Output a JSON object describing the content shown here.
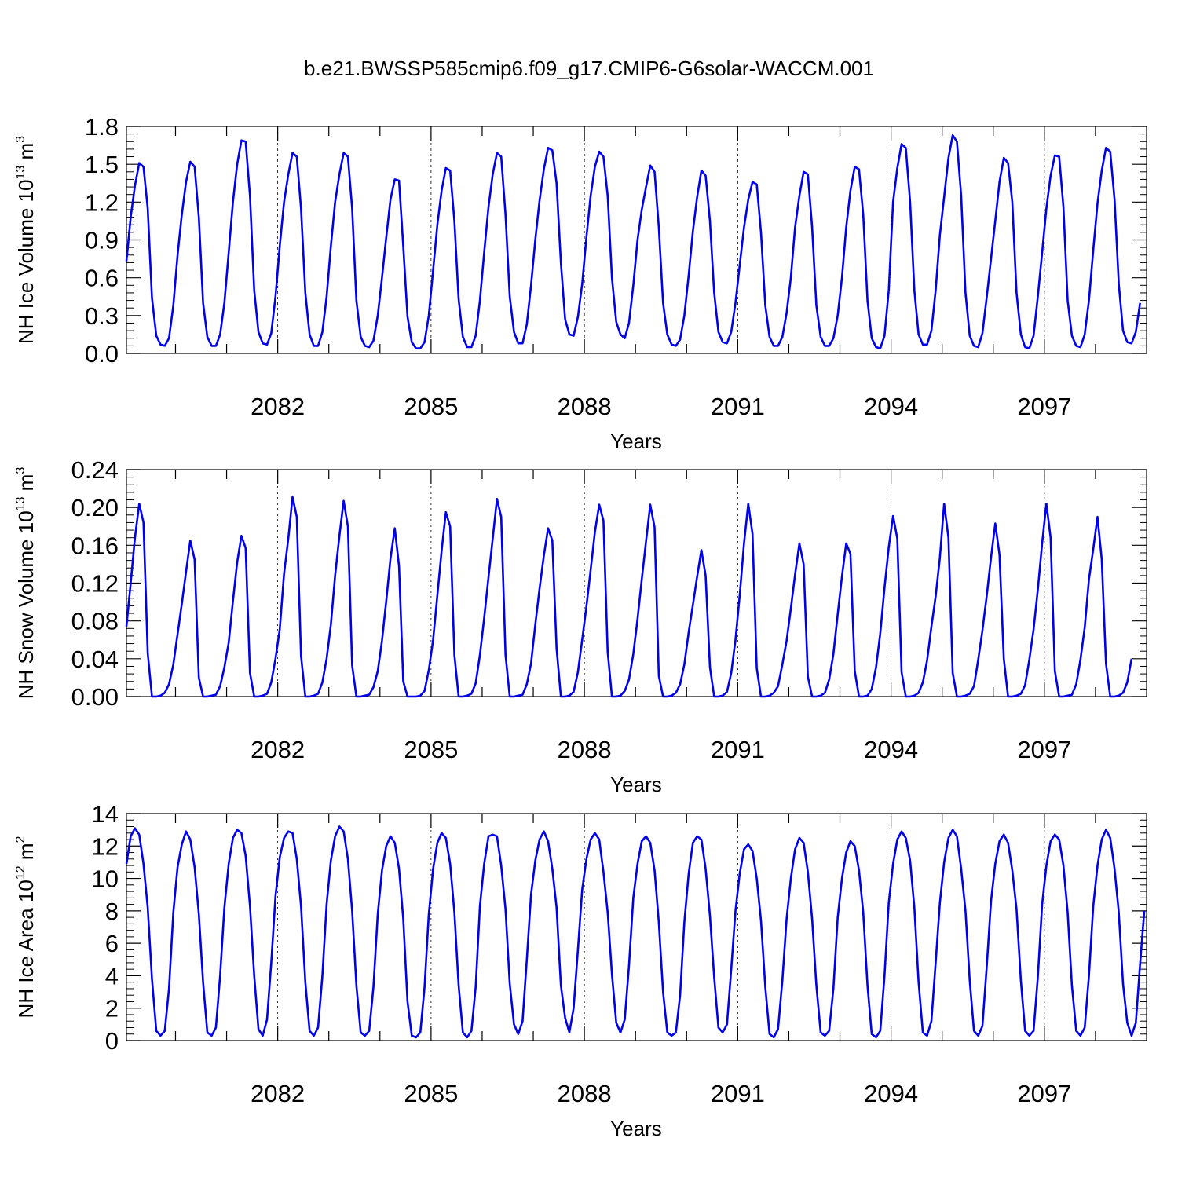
{
  "title": "b.e21.BWSSP585cmip6.f09_g17.CMIP6-G6solar-WACCM.001",
  "colors": {
    "line": "#0000ee",
    "axis": "#000000",
    "grid": "#000000"
  },
  "chart_data": [
    {
      "type": "line",
      "title": "b.e21.BWSSP585cmip6.f09_g17.CMIP6-G6solar-WACCM.001",
      "xlabel": "Years",
      "ylabel": {
        "main": "NH Ice Volume 10",
        "sup": "13",
        "unit": " m",
        "unit_sup": "3"
      },
      "xlim": [
        2079.04,
        2099.0
      ],
      "ylim": [
        0,
        1.8
      ],
      "yticks": [
        "0.0",
        "0.3",
        "0.6",
        "0.9",
        "1.2",
        "1.5",
        "1.8"
      ],
      "xticks": [
        "2082",
        "2085",
        "2088",
        "2091",
        "2094",
        "2097"
      ],
      "grid": "dashed vertical lines at labeled years",
      "series": [
        {
          "x_start": 2079.04,
          "x_step": 0.08333,
          "values": [
            0.73,
            1.08,
            1.33,
            1.51,
            1.48,
            1.15,
            0.44,
            0.14,
            0.07,
            0.06,
            0.12,
            0.38,
            0.78,
            1.1,
            1.36,
            1.52,
            1.48,
            1.08,
            0.4,
            0.13,
            0.06,
            0.06,
            0.15,
            0.4,
            0.8,
            1.2,
            1.5,
            1.69,
            1.68,
            1.25,
            0.5,
            0.17,
            0.08,
            0.07,
            0.16,
            0.45,
            0.85,
            1.2,
            1.42,
            1.59,
            1.56,
            1.15,
            0.48,
            0.15,
            0.06,
            0.06,
            0.17,
            0.45,
            0.85,
            1.2,
            1.42,
            1.59,
            1.56,
            1.15,
            0.42,
            0.13,
            0.06,
            0.05,
            0.1,
            0.3,
            0.6,
            0.92,
            1.22,
            1.38,
            1.37,
            0.85,
            0.29,
            0.09,
            0.04,
            0.04,
            0.09,
            0.3,
            0.66,
            1.02,
            1.29,
            1.47,
            1.45,
            1.05,
            0.43,
            0.13,
            0.05,
            0.05,
            0.14,
            0.42,
            0.8,
            1.16,
            1.42,
            1.59,
            1.56,
            1.1,
            0.45,
            0.17,
            0.08,
            0.08,
            0.23,
            0.54,
            0.9,
            1.21,
            1.46,
            1.63,
            1.61,
            1.35,
            0.72,
            0.27,
            0.15,
            0.14,
            0.29,
            0.55,
            0.92,
            1.25,
            1.48,
            1.6,
            1.56,
            1.25,
            0.6,
            0.25,
            0.15,
            0.12,
            0.24,
            0.54,
            0.9,
            1.14,
            1.32,
            1.49,
            1.44,
            1.0,
            0.4,
            0.15,
            0.07,
            0.06,
            0.11,
            0.3,
            0.62,
            0.97,
            1.24,
            1.45,
            1.41,
            1.05,
            0.48,
            0.17,
            0.09,
            0.08,
            0.17,
            0.4,
            0.7,
            1.0,
            1.22,
            1.36,
            1.34,
            0.96,
            0.38,
            0.13,
            0.06,
            0.06,
            0.13,
            0.32,
            0.6,
            1.0,
            1.25,
            1.44,
            1.42,
            1.0,
            0.38,
            0.13,
            0.06,
            0.06,
            0.12,
            0.3,
            0.6,
            1.0,
            1.29,
            1.48,
            1.46,
            1.1,
            0.42,
            0.12,
            0.05,
            0.04,
            0.14,
            0.5,
            1.2,
            1.47,
            1.66,
            1.63,
            1.2,
            0.5,
            0.15,
            0.07,
            0.07,
            0.18,
            0.5,
            0.94,
            1.24,
            1.55,
            1.73,
            1.68,
            1.25,
            0.48,
            0.14,
            0.06,
            0.05,
            0.16,
            0.45,
            0.75,
            1.05,
            1.36,
            1.55,
            1.51,
            1.2,
            0.48,
            0.15,
            0.05,
            0.04,
            0.14,
            0.45,
            0.8,
            1.15,
            1.41,
            1.57,
            1.56,
            1.16,
            0.42,
            0.14,
            0.06,
            0.05,
            0.15,
            0.42,
            0.82,
            1.19,
            1.45,
            1.63,
            1.6,
            1.22,
            0.55,
            0.18,
            0.09,
            0.08,
            0.17,
            0.4
          ]
        }
      ]
    },
    {
      "type": "line",
      "xlabel": "Years",
      "ylabel": {
        "main": "NH Snow Volume 10",
        "sup": "13",
        "unit": " m",
        "unit_sup": "3"
      },
      "xlim": [
        2079.04,
        2099.0
      ],
      "ylim": [
        0,
        0.24
      ],
      "yticks": [
        "0.00",
        "0.04",
        "0.08",
        "0.12",
        "0.16",
        "0.20",
        "0.24"
      ],
      "xticks": [
        "2082",
        "2085",
        "2088",
        "2091",
        "2094",
        "2097"
      ],
      "grid": "dashed vertical lines at labeled years",
      "series": [
        {
          "x_start": 2079.04,
          "x_step": 0.08333,
          "values": [
            0.074,
            0.12,
            0.168,
            0.204,
            0.184,
            0.046,
            0.0,
            0.0,
            0.001,
            0.004,
            0.013,
            0.034,
            0.066,
            0.098,
            0.132,
            0.165,
            0.145,
            0.02,
            0.0,
            0.0,
            0.001,
            0.002,
            0.011,
            0.031,
            0.057,
            0.101,
            0.142,
            0.17,
            0.157,
            0.025,
            0.0,
            0.0,
            0.001,
            0.003,
            0.015,
            0.04,
            0.071,
            0.13,
            0.167,
            0.211,
            0.19,
            0.043,
            0.0,
            0.0,
            0.001,
            0.003,
            0.015,
            0.04,
            0.076,
            0.128,
            0.17,
            0.207,
            0.18,
            0.033,
            0.0,
            0.0,
            0.001,
            0.002,
            0.01,
            0.027,
            0.059,
            0.101,
            0.146,
            0.178,
            0.138,
            0.016,
            0.0,
            0.0,
            0.0,
            0.001,
            0.006,
            0.028,
            0.06,
            0.107,
            0.154,
            0.195,
            0.18,
            0.044,
            0.0,
            0.0,
            0.001,
            0.003,
            0.014,
            0.044,
            0.083,
            0.126,
            0.167,
            0.209,
            0.19,
            0.044,
            0.0,
            0.0,
            0.001,
            0.002,
            0.013,
            0.035,
            0.076,
            0.114,
            0.149,
            0.178,
            0.165,
            0.051,
            0.0,
            0.0,
            0.001,
            0.005,
            0.026,
            0.06,
            0.095,
            0.134,
            0.174,
            0.203,
            0.186,
            0.047,
            0.0,
            0.0,
            0.001,
            0.006,
            0.018,
            0.045,
            0.082,
            0.124,
            0.164,
            0.203,
            0.179,
            0.022,
            0.0,
            0.0,
            0.001,
            0.004,
            0.013,
            0.034,
            0.068,
            0.097,
            0.127,
            0.155,
            0.128,
            0.031,
            0.0,
            0.0,
            0.001,
            0.005,
            0.025,
            0.06,
            0.107,
            0.162,
            0.204,
            0.172,
            0.03,
            0.0,
            0.0,
            0.001,
            0.004,
            0.011,
            0.034,
            0.059,
            0.093,
            0.129,
            0.162,
            0.14,
            0.021,
            0.0,
            0.0,
            0.001,
            0.004,
            0.018,
            0.045,
            0.087,
            0.127,
            0.162,
            0.151,
            0.027,
            0.0,
            0.0,
            0.001,
            0.008,
            0.031,
            0.067,
            0.115,
            0.158,
            0.191,
            0.167,
            0.026,
            0.0,
            0.0,
            0.001,
            0.004,
            0.015,
            0.038,
            0.074,
            0.106,
            0.147,
            0.204,
            0.168,
            0.025,
            0.0,
            0.0,
            0.001,
            0.003,
            0.011,
            0.039,
            0.07,
            0.107,
            0.147,
            0.183,
            0.15,
            0.04,
            0.0,
            0.0,
            0.001,
            0.003,
            0.012,
            0.039,
            0.071,
            0.113,
            0.162,
            0.204,
            0.168,
            0.027,
            0.0,
            0.0,
            0.001,
            0.002,
            0.013,
            0.039,
            0.073,
            0.124,
            0.156,
            0.19,
            0.145,
            0.035,
            0.0,
            0.0,
            0.001,
            0.004,
            0.015,
            0.04
          ]
        }
      ]
    },
    {
      "type": "line",
      "xlabel": "Years",
      "ylabel": {
        "main": "NH Ice Area 10",
        "sup": "12",
        "unit": " m",
        "unit_sup": "2"
      },
      "xlim": [
        2079.04,
        2099.0
      ],
      "ylim": [
        0,
        14
      ],
      "yticks": [
        "0",
        "2",
        "4",
        "6",
        "8",
        "10",
        "12",
        "14"
      ],
      "xticks": [
        "2082",
        "2085",
        "2088",
        "2091",
        "2094",
        "2097"
      ],
      "grid": "dashed vertical lines at labeled years",
      "series": [
        {
          "x_start": 2079.04,
          "x_step": 0.08333,
          "values": [
            10.9,
            12.6,
            13.1,
            12.7,
            10.9,
            8.2,
            3.8,
            0.6,
            0.3,
            0.6,
            3.2,
            7.9,
            10.7,
            12.1,
            12.9,
            12.4,
            10.7,
            7.8,
            3.6,
            0.5,
            0.3,
            0.8,
            4.0,
            8.2,
            10.9,
            12.5,
            13.0,
            12.8,
            11.4,
            8.3,
            4.0,
            0.7,
            0.3,
            1.3,
            4.8,
            8.9,
            11.3,
            12.5,
            12.9,
            12.8,
            11.2,
            8.3,
            3.6,
            0.6,
            0.3,
            0.8,
            4.0,
            8.4,
            11.1,
            12.6,
            13.2,
            12.9,
            11.2,
            8.0,
            3.4,
            0.5,
            0.3,
            0.6,
            3.3,
            7.8,
            10.5,
            12.0,
            12.6,
            12.2,
            10.6,
            7.5,
            2.4,
            0.3,
            0.2,
            0.5,
            3.3,
            7.8,
            10.6,
            12.2,
            12.8,
            12.5,
            10.9,
            7.9,
            3.4,
            0.5,
            0.2,
            0.6,
            3.3,
            8.3,
            10.9,
            12.6,
            12.7,
            12.6,
            10.8,
            8.1,
            3.5,
            1.0,
            0.4,
            1.2,
            5.0,
            9.0,
            11.1,
            12.4,
            12.9,
            12.3,
            10.6,
            8.2,
            3.4,
            1.4,
            0.5,
            2.0,
            5.6,
            9.3,
            11.2,
            12.4,
            12.8,
            12.4,
            10.4,
            7.9,
            4.1,
            1.1,
            0.5,
            1.3,
            4.6,
            8.8,
            10.9,
            12.3,
            12.6,
            12.2,
            10.5,
            7.3,
            3.0,
            0.5,
            0.3,
            0.5,
            2.8,
            7.3,
            10.3,
            12.2,
            12.6,
            12.4,
            10.6,
            7.7,
            3.9,
            0.8,
            0.5,
            1.0,
            4.4,
            8.0,
            10.3,
            11.8,
            12.1,
            11.7,
            10.0,
            7.4,
            3.3,
            0.4,
            0.2,
            0.7,
            3.7,
            7.5,
            10.0,
            11.8,
            12.5,
            12.2,
            10.4,
            7.5,
            3.4,
            0.5,
            0.3,
            0.6,
            3.2,
            7.6,
            10.0,
            11.6,
            12.3,
            12.0,
            10.5,
            7.9,
            3.4,
            0.4,
            0.2,
            0.6,
            4.0,
            8.5,
            10.9,
            12.4,
            12.9,
            12.5,
            11.1,
            8.2,
            3.6,
            0.5,
            0.3,
            1.2,
            4.8,
            8.5,
            11.0,
            12.5,
            13.0,
            12.6,
            10.6,
            8.0,
            3.7,
            0.6,
            0.3,
            0.9,
            4.6,
            8.6,
            10.9,
            12.3,
            12.7,
            12.2,
            10.5,
            8.1,
            3.7,
            0.6,
            0.3,
            0.6,
            3.9,
            8.4,
            10.8,
            12.3,
            12.7,
            12.4,
            10.8,
            7.9,
            3.4,
            0.6,
            0.3,
            0.8,
            4.0,
            8.3,
            10.8,
            12.4,
            13.0,
            12.5,
            10.6,
            7.9,
            3.5,
            1.1,
            0.3,
            1.1,
            4.7,
            8.0
          ]
        }
      ]
    }
  ]
}
